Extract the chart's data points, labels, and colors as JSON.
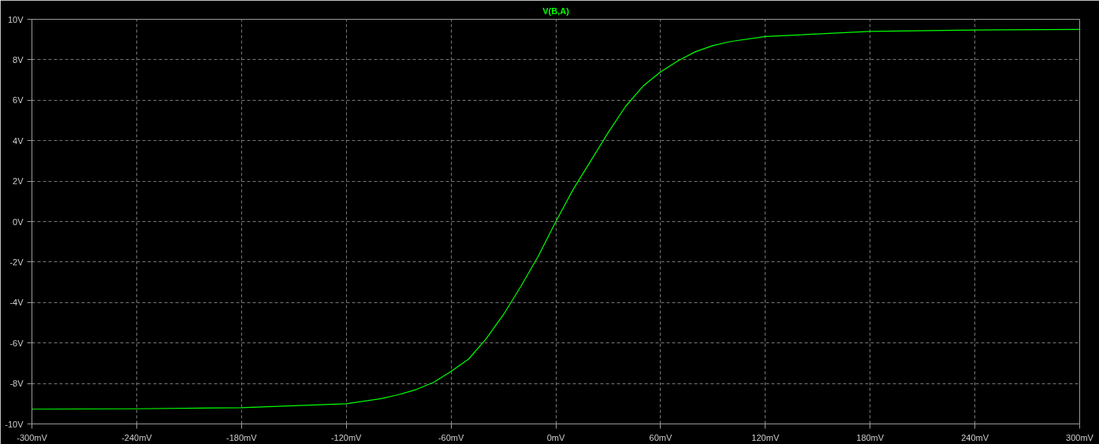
{
  "chart_data": {
    "type": "line",
    "title": "V(B,A)",
    "x": [
      -300,
      -240,
      -180,
      -120,
      -100,
      -90,
      -80,
      -70,
      -60,
      -50,
      -40,
      -30,
      -20,
      -10,
      0,
      10,
      20,
      30,
      40,
      50,
      60,
      70,
      80,
      90,
      100,
      120,
      180,
      240,
      300
    ],
    "series": [
      {
        "color": "#00ff00",
        "values": [
          -9.27,
          -9.25,
          -9.2,
          -9.0,
          -8.75,
          -8.55,
          -8.3,
          -7.95,
          -7.4,
          -6.8,
          -5.8,
          -4.6,
          -3.2,
          -1.7,
          0,
          1.6,
          3.0,
          4.4,
          5.7,
          6.7,
          7.4,
          7.95,
          8.4,
          8.7,
          8.9,
          9.15,
          9.4,
          9.47,
          9.5
        ]
      }
    ],
    "xlim": [
      -300,
      300
    ],
    "ylim": [
      -10,
      10
    ],
    "xticks": [
      {
        "value": -300,
        "label": "-300mV"
      },
      {
        "value": -240,
        "label": "-240mV"
      },
      {
        "value": -180,
        "label": "-180mV"
      },
      {
        "value": -120,
        "label": "-120mV"
      },
      {
        "value": -60,
        "label": "-60mV"
      },
      {
        "value": 0,
        "label": "0mV"
      },
      {
        "value": 60,
        "label": "60mV"
      },
      {
        "value": 120,
        "label": "120mV"
      },
      {
        "value": 180,
        "label": "180mV"
      },
      {
        "value": 240,
        "label": "240mV"
      },
      {
        "value": 300,
        "label": "300mV"
      }
    ],
    "yticks": [
      {
        "value": -10,
        "label": "-10V"
      },
      {
        "value": -8,
        "label": "-8V"
      },
      {
        "value": -6,
        "label": "-6V"
      },
      {
        "value": -4,
        "label": "-4V"
      },
      {
        "value": -2,
        "label": "-2V"
      },
      {
        "value": 0,
        "label": "0V"
      },
      {
        "value": 2,
        "label": "2V"
      },
      {
        "value": 4,
        "label": "4V"
      },
      {
        "value": 6,
        "label": "6V"
      },
      {
        "value": 8,
        "label": "8V"
      },
      {
        "value": 10,
        "label": "10V"
      }
    ],
    "grid": true,
    "line_style": "solid",
    "marker": "none"
  }
}
